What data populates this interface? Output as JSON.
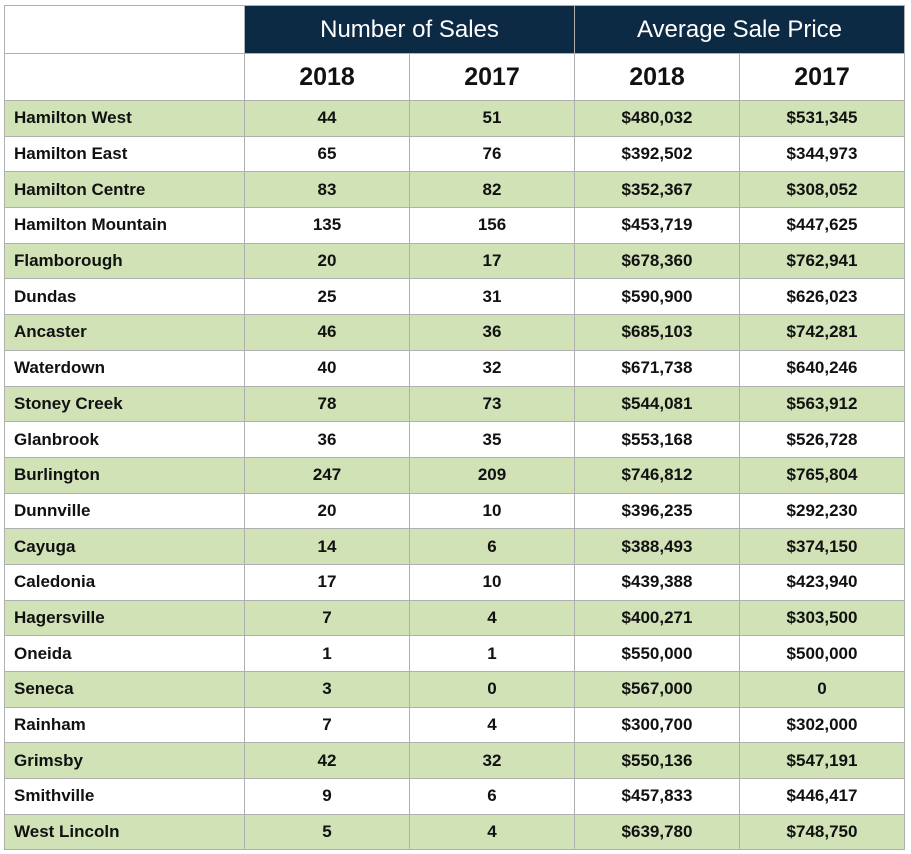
{
  "chart_data": {
    "type": "table",
    "column_groups": [
      {
        "label": "Number of Sales",
        "span": 2
      },
      {
        "label": "Average Sale Price",
        "span": 2
      }
    ],
    "columns": [
      "2018",
      "2017",
      "2018",
      "2017"
    ],
    "rows": [
      {
        "name": "Hamilton West",
        "values": [
          "44",
          "51",
          "$480,032",
          "$531,345"
        ]
      },
      {
        "name": "Hamilton East",
        "values": [
          "65",
          "76",
          "$392,502",
          "$344,973"
        ]
      },
      {
        "name": "Hamilton Centre",
        "values": [
          "83",
          "82",
          "$352,367",
          "$308,052"
        ]
      },
      {
        "name": "Hamilton Mountain",
        "values": [
          "135",
          "156",
          "$453,719",
          "$447,625"
        ]
      },
      {
        "name": "Flamborough",
        "values": [
          "20",
          "17",
          "$678,360",
          "$762,941"
        ]
      },
      {
        "name": "Dundas",
        "values": [
          "25",
          "31",
          "$590,900",
          "$626,023"
        ]
      },
      {
        "name": "Ancaster",
        "values": [
          "46",
          "36",
          "$685,103",
          "$742,281"
        ]
      },
      {
        "name": "Waterdown",
        "values": [
          "40",
          "32",
          "$671,738",
          "$640,246"
        ]
      },
      {
        "name": "Stoney Creek",
        "values": [
          "78",
          "73",
          "$544,081",
          "$563,912"
        ]
      },
      {
        "name": "Glanbrook",
        "values": [
          "36",
          "35",
          "$553,168",
          "$526,728"
        ]
      },
      {
        "name": "Burlington",
        "values": [
          "247",
          "209",
          "$746,812",
          "$765,804"
        ]
      },
      {
        "name": "Dunnville",
        "values": [
          "20",
          "10",
          "$396,235",
          "$292,230"
        ]
      },
      {
        "name": "Cayuga",
        "values": [
          "14",
          "6",
          "$388,493",
          "$374,150"
        ]
      },
      {
        "name": "Caledonia",
        "values": [
          "17",
          "10",
          "$439,388",
          "$423,940"
        ]
      },
      {
        "name": "Hagersville",
        "values": [
          "7",
          "4",
          "$400,271",
          "$303,500"
        ]
      },
      {
        "name": "Oneida",
        "values": [
          "1",
          "1",
          "$550,000",
          "$500,000"
        ]
      },
      {
        "name": "Seneca",
        "values": [
          "3",
          "0",
          "$567,000",
          "0"
        ]
      },
      {
        "name": "Rainham",
        "values": [
          "7",
          "4",
          "$300,700",
          "$302,000"
        ]
      },
      {
        "name": "Grimsby",
        "values": [
          "42",
          "32",
          "$550,136",
          "$547,191"
        ]
      },
      {
        "name": "Smithville",
        "values": [
          "9",
          "6",
          "$457,833",
          "$446,417"
        ]
      },
      {
        "name": "West Lincoln",
        "values": [
          "5",
          "4",
          "$639,780",
          "$748,750"
        ]
      }
    ]
  },
  "colors": {
    "header_navy": "#0d2a45",
    "row_shade": "#d0e2b6",
    "row_plain": "#ffffff",
    "grid": "#b0b0b0"
  }
}
